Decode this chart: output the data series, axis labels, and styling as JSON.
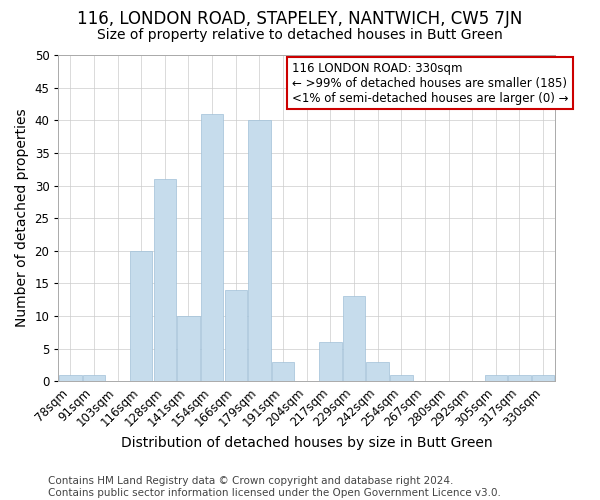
{
  "title": "116, LONDON ROAD, STAPELEY, NANTWICH, CW5 7JN",
  "subtitle": "Size of property relative to detached houses in Butt Green",
  "xlabel": "Distribution of detached houses by size in Butt Green",
  "ylabel": "Number of detached properties",
  "footer_line1": "Contains HM Land Registry data © Crown copyright and database right 2024.",
  "footer_line2": "Contains public sector information licensed under the Open Government Licence v3.0.",
  "categories": [
    "78sqm",
    "91sqm",
    "103sqm",
    "116sqm",
    "128sqm",
    "141sqm",
    "154sqm",
    "166sqm",
    "179sqm",
    "191sqm",
    "204sqm",
    "217sqm",
    "229sqm",
    "242sqm",
    "254sqm",
    "267sqm",
    "280sqm",
    "292sqm",
    "305sqm",
    "317sqm",
    "330sqm"
  ],
  "values": [
    1,
    1,
    0,
    20,
    31,
    10,
    41,
    14,
    40,
    3,
    0,
    6,
    13,
    3,
    1,
    0,
    0,
    0,
    1,
    1,
    1
  ],
  "bar_color": "#c6dcec",
  "bar_edge_color": "#a0c0d8",
  "annotation_title": "116 LONDON ROAD: 330sqm",
  "annotation_line1": "← >99% of detached houses are smaller (185)",
  "annotation_line2": "<1% of semi-detached houses are larger (0) →",
  "annotation_box_color": "#ffffff",
  "annotation_box_edge_color": "#cc0000",
  "ylim": [
    0,
    50
  ],
  "yticks": [
    0,
    5,
    10,
    15,
    20,
    25,
    30,
    35,
    40,
    45,
    50
  ],
  "grid_color": "#cccccc",
  "background_color": "#ffffff",
  "title_fontsize": 12,
  "subtitle_fontsize": 10,
  "axis_label_fontsize": 10,
  "tick_fontsize": 8.5,
  "annotation_fontsize": 8.5,
  "footer_fontsize": 7.5
}
